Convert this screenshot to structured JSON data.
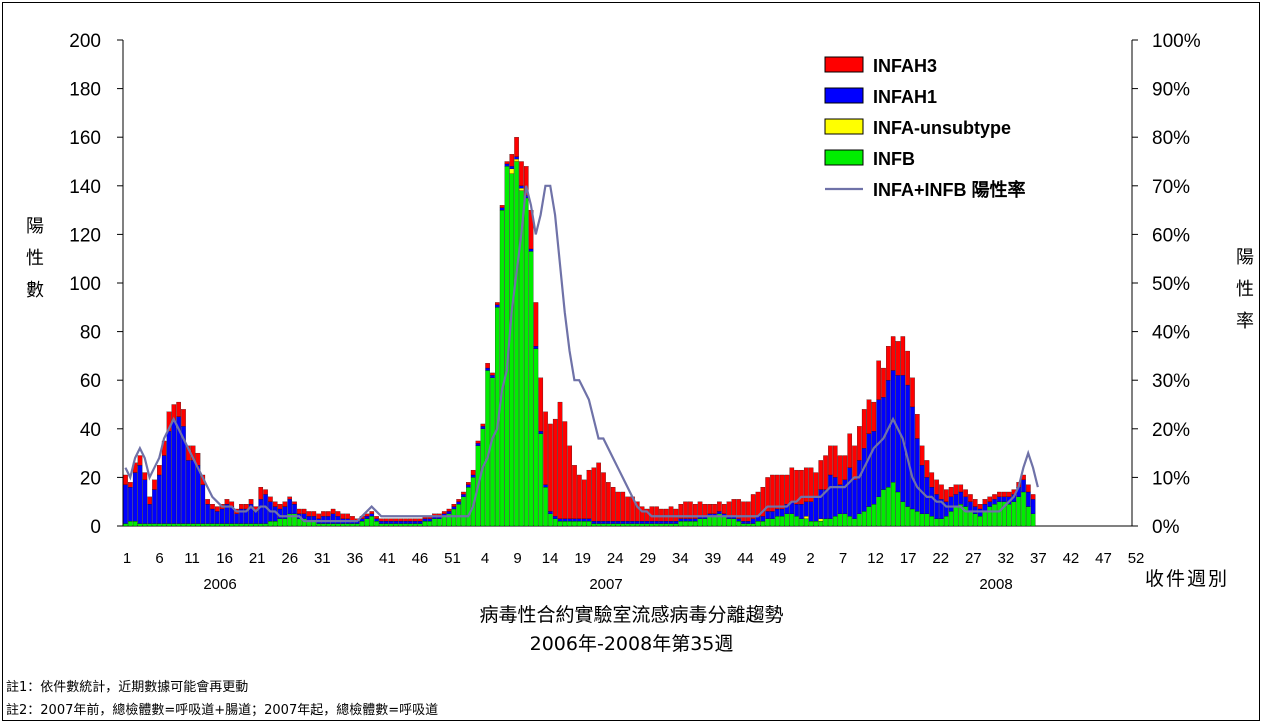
{
  "chart_data": {
    "type": "bar",
    "title": "病毒性合約實驗室流感病毒分離趨勢",
    "subtitle": "2006年-2008年第35週",
    "ylabel": "陽性數",
    "y2label": "陽性率",
    "xlabel": "收件週別",
    "ylim": [
      0,
      200
    ],
    "y2lim": [
      0,
      100
    ],
    "yticks": [
      "0",
      "20",
      "40",
      "60",
      "80",
      "100",
      "120",
      "140",
      "160",
      "180",
      "200"
    ],
    "y2ticks": [
      "0%",
      "10%",
      "20%",
      "30%",
      "40%",
      "50%",
      "60%",
      "70%",
      "80%",
      "90%",
      "100%"
    ],
    "xticks": [
      "1",
      "6",
      "11",
      "16",
      "21",
      "26",
      "31",
      "36",
      "41",
      "46",
      "51",
      "4",
      "9",
      "14",
      "19",
      "24",
      "29",
      "34",
      "39",
      "44",
      "49",
      "2",
      "7",
      "12",
      "17",
      "22",
      "27",
      "32",
      "37",
      "42",
      "47",
      "52"
    ],
    "years": [
      "2006",
      "2007",
      "2008"
    ],
    "legend": [
      "INFAH3",
      "INFAH1",
      "INFA-unsubtype",
      "INFB",
      "INFA+INFB 陽性率"
    ],
    "colors": {
      "INFAH3": "#ff0000",
      "INFAH1": "#0000ff",
      "INFA-unsubtype": "#ffff00",
      "INFB": "#00ee00",
      "rate": "#6f72a8"
    },
    "stack_order": [
      "INFB",
      "INFA-unsubtype",
      "INFAH1",
      "INFAH3"
    ],
    "series": [
      {
        "name": "INFB",
        "values": [
          1,
          2,
          2,
          1,
          1,
          1,
          1,
          1,
          1,
          1,
          1,
          1,
          1,
          1,
          1,
          1,
          1,
          1,
          1,
          1,
          1,
          1,
          1,
          1,
          1,
          1,
          1,
          1,
          1,
          1,
          2,
          2,
          3,
          3,
          5,
          5,
          3,
          3,
          2,
          2,
          1,
          1,
          1,
          1,
          1,
          1,
          1,
          1,
          1,
          2,
          3,
          4,
          2,
          1,
          1,
          1,
          1,
          1,
          1,
          1,
          1,
          1,
          2,
          2,
          3,
          3,
          4,
          5,
          7,
          9,
          12,
          16,
          20,
          33,
          40,
          64,
          61,
          90,
          130,
          148,
          145,
          150,
          138,
          135,
          113,
          73,
          38,
          16,
          5,
          3,
          2,
          2,
          2,
          2,
          2,
          2,
          2,
          1,
          1,
          1,
          1,
          1,
          1,
          1,
          1,
          1,
          1,
          1,
          1,
          1,
          1,
          1,
          1,
          1,
          1,
          2,
          2,
          2,
          2,
          3,
          3,
          4,
          4,
          5,
          4,
          3,
          3,
          2,
          1,
          1,
          1,
          2,
          2,
          3,
          3,
          4,
          4,
          5,
          5,
          4,
          3,
          3,
          2,
          2,
          2,
          3,
          3,
          4,
          5,
          5,
          4,
          3,
          5,
          6,
          8,
          9,
          12,
          15,
          16,
          18,
          14,
          10,
          8,
          7,
          6,
          5,
          5,
          4,
          3,
          3,
          4,
          6,
          8,
          9,
          8,
          6,
          5,
          4,
          6,
          8,
          9,
          10,
          10,
          9,
          10,
          12,
          14,
          8,
          5
        ]
      },
      {
        "name": "INFA-unsubtype",
        "values": [
          0,
          0,
          0,
          0,
          0,
          0,
          0,
          0,
          0,
          0,
          0,
          0,
          0,
          0,
          0,
          0,
          0,
          0,
          0,
          0,
          0,
          0,
          0,
          0,
          0,
          0,
          0,
          0,
          0,
          0,
          0,
          0,
          0,
          0,
          0,
          0,
          0,
          0,
          0,
          0,
          0,
          0,
          0,
          0,
          0,
          0,
          0,
          0,
          0,
          0,
          0,
          0,
          0,
          0,
          0,
          0,
          0,
          0,
          0,
          0,
          0,
          0,
          0,
          0,
          0,
          0,
          0,
          0,
          0,
          0,
          0,
          0,
          0,
          0,
          0,
          0,
          0,
          0,
          0,
          0,
          2,
          1,
          1,
          0,
          0,
          0,
          0,
          0,
          0,
          0,
          0,
          0,
          0,
          0,
          0,
          0,
          0,
          0,
          0,
          0,
          0,
          0,
          0,
          0,
          0,
          0,
          0,
          0,
          0,
          0,
          0,
          0,
          0,
          0,
          0,
          0,
          0,
          0,
          0,
          0,
          0,
          0,
          0,
          0,
          0,
          0,
          0,
          0,
          0,
          0,
          0,
          0,
          0,
          0,
          0,
          0,
          0,
          0,
          0,
          0,
          0,
          1,
          0,
          0,
          1,
          0,
          0,
          0,
          0,
          0,
          0,
          0,
          0,
          0,
          0,
          0,
          0,
          0,
          0,
          0,
          0,
          0,
          0,
          0,
          0,
          0,
          0,
          0,
          0,
          0,
          0,
          0,
          0,
          0,
          0,
          0,
          0,
          0,
          0,
          0,
          0,
          0,
          0,
          0,
          0,
          0,
          0,
          0,
          0,
          0
        ]
      },
      {
        "name": "INFAH1",
        "values": [
          16,
          14,
          20,
          24,
          18,
          8,
          14,
          20,
          28,
          38,
          42,
          44,
          40,
          26,
          26,
          24,
          16,
          8,
          6,
          5,
          6,
          8,
          7,
          4,
          6,
          6,
          8,
          5,
          10,
          12,
          8,
          6,
          4,
          5,
          6,
          4,
          2,
          2,
          2,
          2,
          2,
          3,
          3,
          4,
          3,
          2,
          2,
          1,
          1,
          1,
          1,
          1,
          1,
          1,
          1,
          1,
          1,
          1,
          1,
          1,
          1,
          1,
          1,
          1,
          1,
          1,
          1,
          1,
          1,
          1,
          1,
          1,
          1,
          1,
          1,
          1,
          1,
          1,
          1,
          1,
          1,
          1,
          1,
          1,
          1,
          1,
          1,
          1,
          1,
          1,
          1,
          1,
          1,
          1,
          1,
          1,
          1,
          1,
          1,
          1,
          1,
          1,
          1,
          1,
          1,
          1,
          1,
          1,
          1,
          1,
          1,
          1,
          1,
          1,
          1,
          1,
          1,
          1,
          1,
          1,
          1,
          1,
          1,
          1,
          1,
          1,
          1,
          1,
          1,
          1,
          2,
          2,
          2,
          3,
          3,
          3,
          3,
          4,
          5,
          5,
          6,
          6,
          8,
          10,
          12,
          12,
          18,
          16,
          12,
          14,
          20,
          16,
          22,
          26,
          30,
          30,
          40,
          38,
          44,
          46,
          48,
          52,
          50,
          42,
          30,
          20,
          15,
          12,
          10,
          8,
          6,
          6,
          5,
          5,
          4,
          4,
          3,
          3,
          3,
          2,
          2,
          2,
          2,
          3,
          3,
          4,
          5,
          6,
          6,
          8
        ]
      },
      {
        "name": "INFAH3",
        "values": [
          4,
          2,
          4,
          4,
          3,
          3,
          4,
          4,
          6,
          8,
          7,
          6,
          7,
          6,
          6,
          5,
          4,
          2,
          2,
          2,
          2,
          2,
          2,
          2,
          2,
          2,
          2,
          2,
          5,
          2,
          2,
          2,
          2,
          2,
          1,
          1,
          2,
          2,
          2,
          2,
          2,
          2,
          2,
          2,
          2,
          2,
          2,
          2,
          1,
          1,
          1,
          1,
          1,
          1,
          1,
          1,
          1,
          1,
          1,
          1,
          1,
          1,
          1,
          1,
          1,
          1,
          1,
          1,
          1,
          1,
          1,
          1,
          2,
          1,
          1,
          2,
          1,
          1,
          1,
          1,
          5,
          8,
          10,
          12,
          16,
          18,
          22,
          30,
          36,
          40,
          48,
          40,
          30,
          22,
          18,
          16,
          20,
          22,
          24,
          20,
          16,
          14,
          12,
          12,
          10,
          10,
          8,
          6,
          5,
          6,
          6,
          5,
          5,
          6,
          5,
          6,
          7,
          7,
          6,
          6,
          5,
          4,
          4,
          4,
          4,
          6,
          7,
          8,
          8,
          8,
          10,
          10,
          12,
          14,
          15,
          14,
          14,
          12,
          14,
          14,
          14,
          14,
          14,
          10,
          12,
          14,
          12,
          13,
          12,
          10,
          14,
          14,
          14,
          16,
          14,
          12,
          16,
          12,
          14,
          14,
          14,
          16,
          14,
          12,
          10,
          8,
          7,
          6,
          6,
          6,
          5,
          4,
          4,
          3,
          3,
          3,
          3,
          2,
          2,
          2,
          2,
          2,
          2,
          2,
          2,
          2,
          2,
          3,
          2,
          4
        ]
      }
    ],
    "rate": [
      12,
      10,
      14,
      16,
      14,
      10,
      12,
      14,
      18,
      20,
      22,
      20,
      18,
      16,
      14,
      12,
      10,
      8,
      6,
      5,
      4,
      4,
      4,
      3,
      3,
      3,
      4,
      3,
      4,
      4,
      3,
      3,
      2,
      2,
      2,
      2,
      2,
      1,
      1,
      1,
      1,
      1,
      1,
      1,
      1,
      1,
      1,
      1,
      1,
      2,
      3,
      4,
      3,
      2,
      2,
      2,
      2,
      2,
      2,
      2,
      2,
      2,
      2,
      2,
      2,
      2,
      2,
      2,
      2,
      2,
      2,
      2,
      4,
      8,
      12,
      14,
      18,
      20,
      28,
      32,
      44,
      52,
      60,
      70,
      66,
      60,
      64,
      70,
      70,
      64,
      54,
      44,
      36,
      30,
      30,
      28,
      26,
      22,
      18,
      18,
      16,
      14,
      12,
      10,
      8,
      6,
      4,
      3,
      3,
      2,
      2,
      2,
      2,
      2,
      2,
      2,
      2,
      2,
      2,
      2,
      2,
      2,
      2,
      2,
      2,
      2,
      2,
      2,
      2,
      2,
      2,
      2,
      3,
      4,
      4,
      4,
      4,
      4,
      5,
      5,
      6,
      6,
      6,
      6,
      6,
      7,
      8,
      8,
      8,
      8,
      9,
      10,
      10,
      12,
      14,
      16,
      17,
      18,
      20,
      22,
      20,
      18,
      14,
      10,
      8,
      7,
      6,
      6,
      5,
      5,
      4,
      4,
      4,
      4,
      3,
      3,
      3,
      3,
      3,
      3,
      3,
      3,
      4,
      5,
      6,
      8,
      12,
      15,
      12,
      8
    ]
  },
  "notes": [
    "註1：依件數統計，近期數據可能會再更動",
    "註2：2007年前，總檢體數=呼吸道+腸道；2007年起，總檢體數=呼吸道"
  ]
}
